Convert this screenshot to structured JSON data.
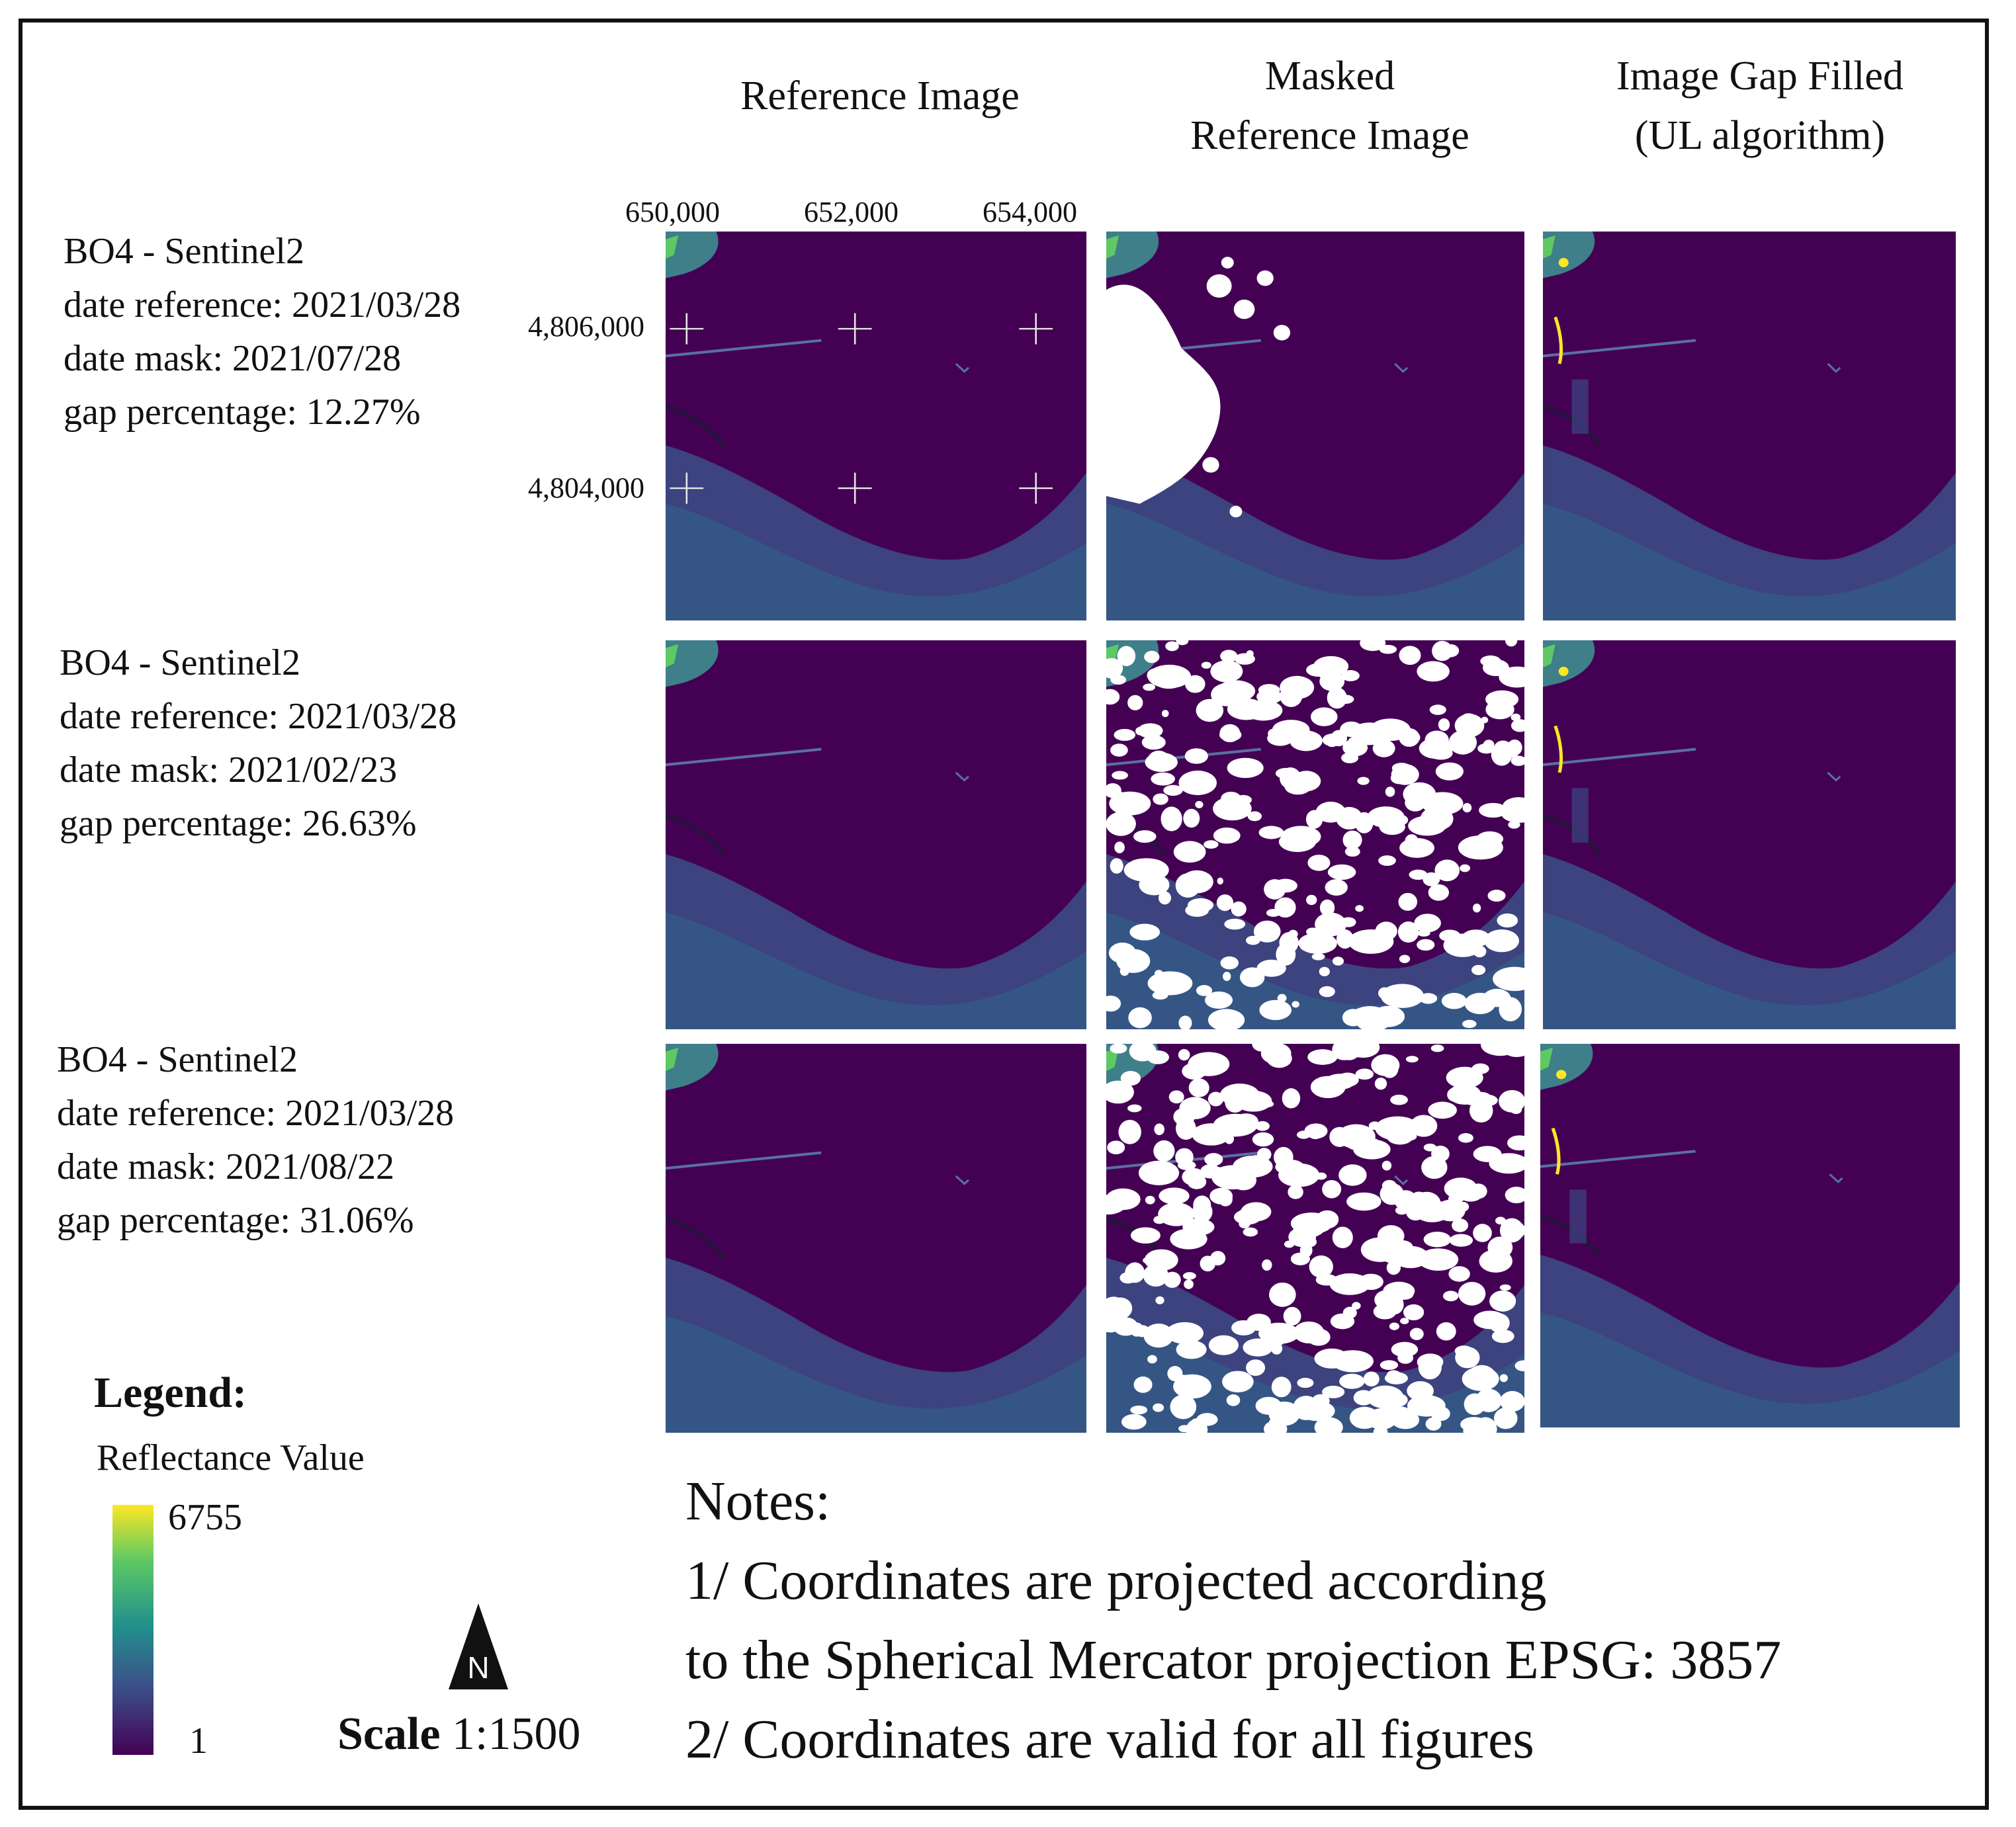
{
  "columns": [
    "Reference Image",
    "Masked\nReference Image",
    "Image Gap Filled\n(UL algorithm)"
  ],
  "x_ticks": [
    "650,000",
    "652,000",
    "654,000"
  ],
  "y_ticks": [
    "4,806,000",
    "4,804,000"
  ],
  "rows": [
    {
      "band": "BO4 - Sentinel2",
      "date_reference": "date reference: 2021/03/28",
      "date_mask": "date mask: 2021/07/28",
      "gap": "gap percentage: 12.27%"
    },
    {
      "band": "BO4 - Sentinel2",
      "date_reference": "date reference: 2021/03/28",
      "date_mask": "date mask: 2021/02/23",
      "gap": "gap percentage: 26.63%"
    },
    {
      "band": "BO4 - Sentinel2",
      "date_reference": "date reference: 2021/03/28",
      "date_mask": "date mask: 2021/08/22",
      "gap": "gap percentage: 31.06%"
    }
  ],
  "legend": {
    "title": "Legend:",
    "subtitle": "Reflectance Value",
    "max": "6755",
    "min": "1"
  },
  "north_label": "N",
  "scale": {
    "word": "Scale",
    "value": "1:1500"
  },
  "notes": {
    "title": "Notes:",
    "line1": "1/ Coordinates are projected according",
    "line2": "to the Spherical Mercator projection EPSG: 3857",
    "line3": "2/ Coordinates are valid for all figures"
  },
  "colors": {
    "water": "#440154",
    "land": "#3b4f86",
    "bright": "#fde725",
    "mask": "#ffffff"
  }
}
